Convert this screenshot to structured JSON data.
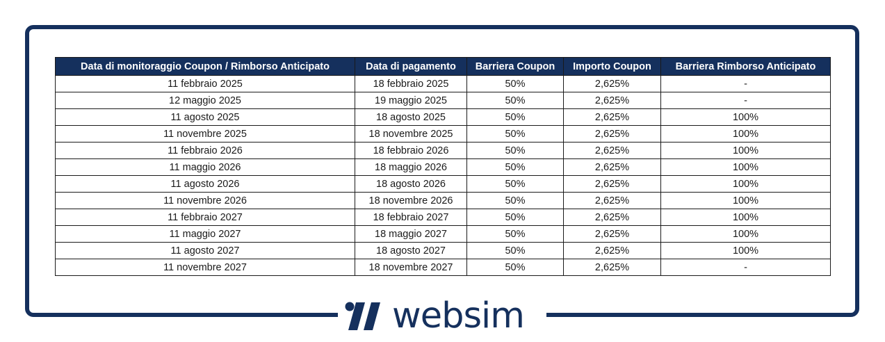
{
  "table": {
    "headers": [
      "Data di monitoraggio Coupon / Rimborso Anticipato",
      "Data di pagamento",
      "Barriera Coupon",
      "Importo Coupon",
      "Barriera Rimborso Anticipato"
    ],
    "rows": [
      [
        "11 febbraio 2025",
        "18 febbraio 2025",
        "50%",
        "2,625%",
        "-"
      ],
      [
        "12 maggio 2025",
        "19 maggio 2025",
        "50%",
        "2,625%",
        "-"
      ],
      [
        "11 agosto 2025",
        "18 agosto 2025",
        "50%",
        "2,625%",
        "100%"
      ],
      [
        "11 novembre 2025",
        "18 novembre 2025",
        "50%",
        "2,625%",
        "100%"
      ],
      [
        "11 febbraio 2026",
        "18 febbraio 2026",
        "50%",
        "2,625%",
        "100%"
      ],
      [
        "11 maggio 2026",
        "18 maggio 2026",
        "50%",
        "2,625%",
        "100%"
      ],
      [
        "11 agosto 2026",
        "18 agosto 2026",
        "50%",
        "2,625%",
        "100%"
      ],
      [
        "11 novembre 2026",
        "18 novembre 2026",
        "50%",
        "2,625%",
        "100%"
      ],
      [
        "11 febbraio 2027",
        "18 febbraio 2027",
        "50%",
        "2,625%",
        "100%"
      ],
      [
        "11 maggio 2027",
        "18 maggio 2027",
        "50%",
        "2,625%",
        "100%"
      ],
      [
        "11 agosto 2027",
        "18 agosto 2027",
        "50%",
        "2,625%",
        "100%"
      ],
      [
        "11 novembre 2027",
        "18 novembre 2027",
        "50%",
        "2,625%",
        "-"
      ]
    ]
  },
  "logo": {
    "text": "websim",
    "icon": "websim-logo-mark",
    "color": "#15305d"
  },
  "colors": {
    "header_bg": "#15305d",
    "header_text": "#ffffff",
    "frame": "#15305d"
  }
}
